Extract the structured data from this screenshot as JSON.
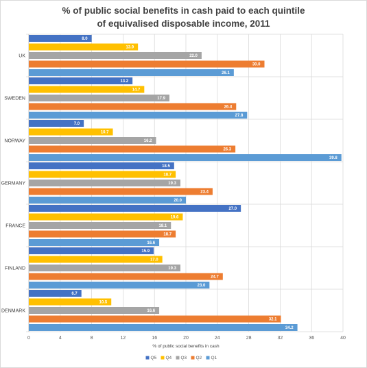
{
  "chart_data": {
    "type": "bar",
    "orientation": "horizontal",
    "title_lines": [
      "% of public social benefits in cash paid to each quintile",
      "of equivalised disposable income, 2011"
    ],
    "xlabel": "% of public  social benefits in cash",
    "ylabel": "",
    "xlim": [
      0,
      40
    ],
    "xticks": [
      0,
      4,
      8,
      12,
      16,
      20,
      24,
      28,
      32,
      36,
      40
    ],
    "grid": true,
    "legend_position": "bottom",
    "categories": [
      "UK",
      "SWEDEN",
      "NORWAY",
      "GERMANY",
      "FRANCE",
      "FINLAND",
      "DENMARK"
    ],
    "series": [
      {
        "name": "Q5",
        "color": "#4472c4",
        "values": [
          8.0,
          13.2,
          7.0,
          18.5,
          27.0,
          15.9,
          6.7
        ],
        "labels": [
          "8.0",
          "13.2",
          "7.0",
          "18.5",
          "27.0",
          "15.9",
          "6.7"
        ]
      },
      {
        "name": "Q4",
        "color": "#ffc000",
        "values": [
          13.9,
          14.7,
          10.7,
          18.7,
          19.6,
          17.0,
          10.5
        ],
        "labels": [
          "13.9",
          "14.7",
          "10.7",
          "18.7",
          "19.6",
          "17.0",
          "10.5"
        ]
      },
      {
        "name": "Q3",
        "color": "#a5a5a5",
        "values": [
          22.0,
          17.9,
          16.2,
          19.3,
          18.1,
          19.3,
          16.6
        ],
        "labels": [
          "22.0",
          "17.9",
          "16.2",
          "19.3",
          "18.1",
          "19.3",
          "16.6"
        ]
      },
      {
        "name": "Q2",
        "color": "#ed7d31",
        "values": [
          30.0,
          26.4,
          26.3,
          23.4,
          18.7,
          24.7,
          32.1
        ],
        "labels": [
          "30.0",
          "26.4",
          "26.3",
          "23.4",
          "18.7",
          "24.7",
          "32.1"
        ]
      },
      {
        "name": "Q1",
        "color": "#5b9bd5",
        "values": [
          26.1,
          27.8,
          39.8,
          20.0,
          16.6,
          23.0,
          34.2
        ],
        "labels": [
          "26.1",
          "27.8",
          "39.8",
          "20.0",
          "16.6",
          "23.0",
          "34.2"
        ]
      }
    ]
  }
}
